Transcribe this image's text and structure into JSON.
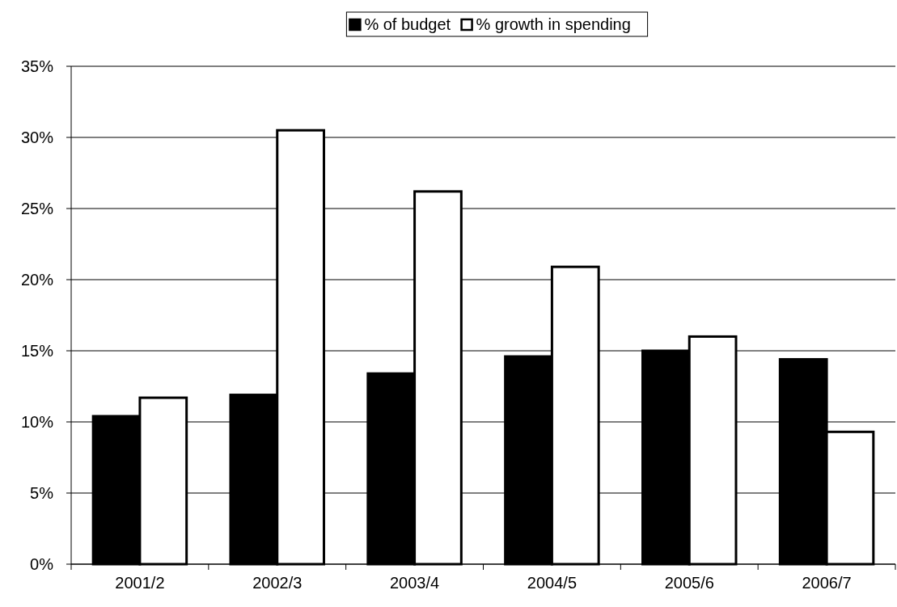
{
  "chart_data": {
    "type": "bar",
    "categories": [
      "2001/2",
      "2002/3",
      "2003/4",
      "2004/5",
      "2005/6",
      "2006/7"
    ],
    "series": [
      {
        "name": "% of budget",
        "color": "#000000",
        "values": [
          10.4,
          11.9,
          13.4,
          14.6,
          15.0,
          14.4
        ]
      },
      {
        "name": "% growth in spending",
        "color": "#ffffff",
        "values": [
          11.7,
          30.5,
          26.2,
          20.9,
          16.0,
          9.3
        ]
      }
    ],
    "ylim": [
      0,
      35
    ],
    "yticks": [
      {
        "value": 0,
        "label": "0%"
      },
      {
        "value": 5,
        "label": "5%"
      },
      {
        "value": 10,
        "label": "10%"
      },
      {
        "value": 15,
        "label": "15%"
      },
      {
        "value": 20,
        "label": "20%"
      },
      {
        "value": 25,
        "label": "25%"
      },
      {
        "value": 30,
        "label": "30%"
      },
      {
        "value": 35,
        "label": "35%"
      }
    ],
    "grid": "y",
    "legend": "top"
  }
}
